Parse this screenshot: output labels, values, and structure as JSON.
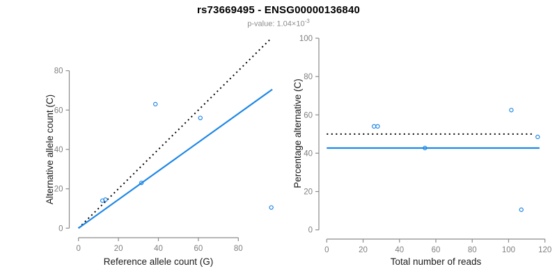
{
  "header": {
    "title": "rs73669495 - ENSG00000136840",
    "pvalue_label": "p-value: ",
    "pvalue_mantissa": "1.04",
    "pvalue_times": "×10",
    "pvalue_exponent": "-3"
  },
  "colors": {
    "accent_blue": "#1E87E5",
    "dotted_black": "#000000",
    "axis_line": "#8a8a8a",
    "tick_label": "#7f7f7f",
    "axis_title": "#1a1a1a"
  },
  "chart_data": [
    {
      "type": "scatter",
      "name": "ref-vs-alt-counts",
      "xlabel": "Reference allele count (G)",
      "ylabel": "Alternative allele count (C)",
      "xticks": [
        0,
        20,
        40,
        60,
        80
      ],
      "yticks": [
        0,
        20,
        40,
        60,
        80
      ],
      "xlim": [
        0,
        98
      ],
      "ylim": [
        0,
        97
      ],
      "grid": false,
      "marker": "open-circle",
      "points": [
        [
          12,
          14
        ],
        [
          13.5,
          14.5
        ],
        [
          31.5,
          23
        ],
        [
          38.5,
          63
        ],
        [
          61,
          56
        ],
        [
          96.5,
          10.5
        ]
      ],
      "lines": [
        {
          "name": "identity-line",
          "style": "dotted",
          "color": "#000000",
          "pts": [
            [
              0,
              0
            ],
            [
              96,
              96
            ]
          ]
        },
        {
          "name": "fit-line",
          "style": "solid",
          "color": "#1E87E5",
          "pts": [
            [
              0,
              0
            ],
            [
              97,
              70.5
            ]
          ]
        }
      ]
    },
    {
      "type": "scatter",
      "name": "reads-vs-percentage",
      "xlabel": "Total number of reads",
      "ylabel": "Percentage alternative (C)",
      "xticks": [
        0,
        20,
        40,
        60,
        80,
        100,
        120
      ],
      "yticks": [
        0,
        20,
        40,
        60,
        80,
        100
      ],
      "xlim": [
        0,
        120
      ],
      "ylim": [
        0,
        100
      ],
      "grid": false,
      "marker": "open-circle",
      "points": [
        [
          26,
          54
        ],
        [
          28,
          54
        ],
        [
          54,
          42.7
        ],
        [
          101.5,
          62.5
        ],
        [
          107,
          10.5
        ],
        [
          116,
          48.5
        ]
      ],
      "lines": [
        {
          "name": "fifty-percent-line",
          "style": "dotted",
          "color": "#000000",
          "pts": [
            [
              0,
              50
            ],
            [
              113.5,
              50
            ]
          ]
        },
        {
          "name": "mean-percentage-line",
          "style": "solid",
          "color": "#1E87E5",
          "pts": [
            [
              0,
              42.7
            ],
            [
              117,
              42.7
            ]
          ]
        }
      ]
    }
  ]
}
